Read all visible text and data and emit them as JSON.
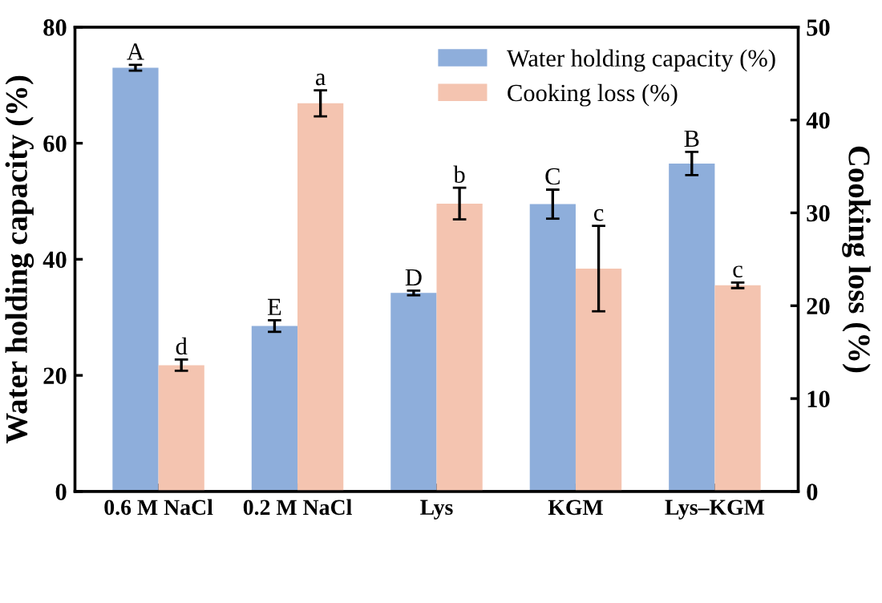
{
  "chart_data": {
    "type": "bar",
    "categories": [
      "0.6 M NaCl",
      "0.2 M NaCl",
      "Lys",
      "KGM",
      "Lys–KGM"
    ],
    "ylabel": "Water holding capacity (%)",
    "y2label": "Cooking loss (%)",
    "series": [
      {
        "name": "Water holding capacity (%)",
        "color": "#8eaedb",
        "values": [
          73,
          28.5,
          34.2,
          49.5,
          56.5
        ],
        "errors": [
          0.5,
          1,
          0.4,
          2.5,
          2
        ],
        "value_labels": [
          "A",
          "E",
          "D",
          "C",
          "B"
        ]
      },
      {
        "name": "Cooking loss (%)",
        "color": "#f4c4b0",
        "axis": "y2",
        "values": [
          13.6,
          41.8,
          31,
          24,
          22.2
        ],
        "errors": [
          0.6,
          1.4,
          1.7,
          4.6,
          0.3
        ],
        "value_labels": [
          "d",
          "a",
          "b",
          "c",
          "c"
        ]
      }
    ],
    "ylim": [
      0,
      80
    ],
    "yticks": [
      0,
      20,
      40,
      60,
      80
    ],
    "y2lim": [
      0,
      50
    ],
    "y2ticks": [
      0,
      10,
      20,
      30,
      40,
      50
    ],
    "legend": "top right",
    "grid": false
  }
}
